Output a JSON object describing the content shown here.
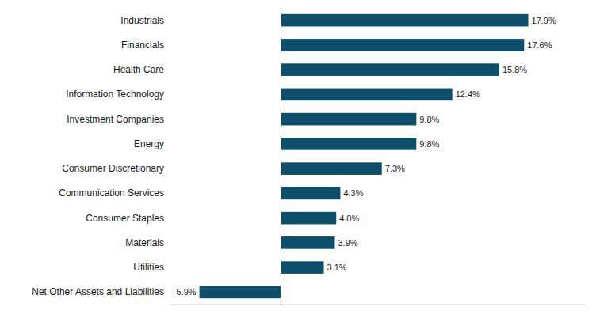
{
  "chart_data": {
    "type": "bar",
    "orientation": "horizontal",
    "categories": [
      "Net Other Assets and Liabilities",
      "Utilities",
      "Materials",
      "Consumer Staples",
      "Communication Services",
      "Consumer Discretionary",
      "Energy",
      "Investment Companies",
      "Information Technology",
      "Health Care",
      "Financials",
      "Industrials"
    ],
    "values": [
      -5.9,
      3.1,
      3.9,
      4.0,
      4.3,
      7.3,
      9.8,
      9.8,
      12.4,
      15.8,
      17.6,
      17.9
    ],
    "value_labels": [
      "-5.9%",
      "3.1%",
      "3.9%",
      "4.0%",
      "4.3%",
      "7.3%",
      "9.8%",
      "9.8%",
      "12.4%",
      "15.8%",
      "17.6%",
      "17.9%"
    ],
    "data_labels": true,
    "color": "#0d4f6b",
    "xlim": [
      -8,
      22
    ],
    "tick_labels": "y",
    "grid": false
  }
}
